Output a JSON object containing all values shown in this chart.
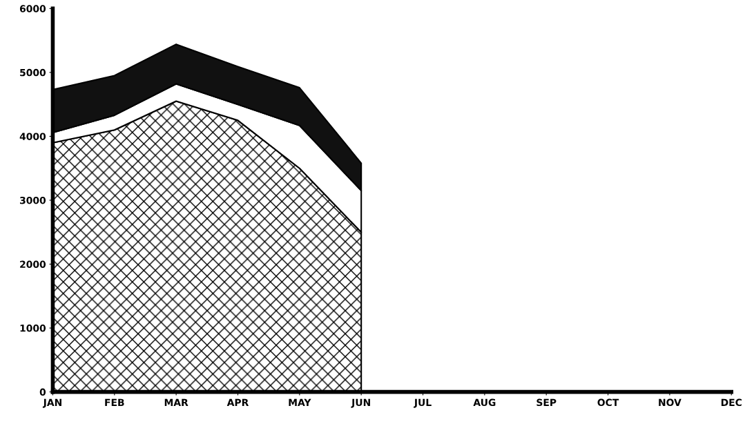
{
  "chart_data": {
    "type": "area",
    "stacked": true,
    "categories": [
      "JAN",
      "FEB",
      "MAR",
      "APR",
      "MAY",
      "JUN",
      "JUL",
      "AUG",
      "SEP",
      "OCT",
      "NOV",
      "DEC"
    ],
    "series": [
      {
        "color": "#000000",
        "values": [
          3900,
          4100,
          4550,
          4250,
          3500,
          2500,
          null,
          null,
          null,
          null,
          null,
          null
        ]
      },
      {
        "color": "#ffffff",
        "values": [
          160,
          230,
          270,
          250,
          670,
          650,
          null,
          null,
          null,
          null,
          null,
          null
        ]
      },
      {
        "color": "#111111",
        "values": [
          670,
          620,
          620,
          590,
          590,
          430,
          null,
          null,
          null,
          null,
          null,
          null
        ]
      }
    ],
    "ylim": [
      0,
      6000
    ],
    "yticks": [
      0,
      1000,
      2000,
      3000,
      4000,
      5000,
      6000
    ],
    "grid": false,
    "legend": false
  }
}
